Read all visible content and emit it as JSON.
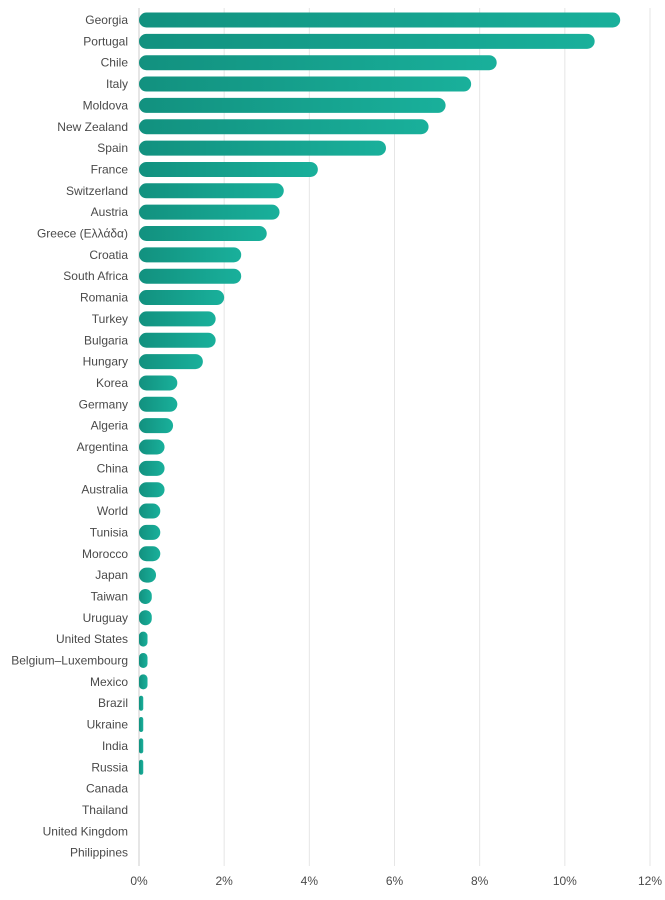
{
  "chart_data": {
    "type": "bar",
    "orientation": "horizontal",
    "categories": [
      "Georgia",
      "Portugal",
      "Chile",
      "Italy",
      "Moldova",
      "New Zealand",
      "Spain",
      "France",
      "Switzerland",
      "Austria",
      "Greece (Ελλάδα)",
      "Croatia",
      "South Africa",
      "Romania",
      "Turkey",
      "Bulgaria",
      "Hungary",
      "Korea",
      "Germany",
      "Algeria",
      "Argentina",
      "China",
      "Australia",
      "World",
      "Tunisia",
      "Morocco",
      "Japan",
      "Taiwan",
      "Uruguay",
      "United States",
      "Belgium–Luxembourg",
      "Mexico",
      "Brazil",
      "Ukraine",
      "India",
      "Russia",
      "Canada",
      "Thailand",
      "United Kingdom",
      "Philippines"
    ],
    "values": [
      11.3,
      10.7,
      8.4,
      7.8,
      7.2,
      6.8,
      5.8,
      4.2,
      3.4,
      3.3,
      3.0,
      2.4,
      2.4,
      2.0,
      1.8,
      1.8,
      1.5,
      0.9,
      0.9,
      0.8,
      0.6,
      0.6,
      0.6,
      0.5,
      0.5,
      0.5,
      0.4,
      0.3,
      0.3,
      0.2,
      0.2,
      0.2,
      0.1,
      0.1,
      0.1,
      0.1,
      0,
      0,
      0,
      0
    ],
    "xlim": [
      0,
      12
    ],
    "xticks": [
      0,
      2,
      4,
      6,
      8,
      10,
      12
    ],
    "tick_suffix": "%",
    "grid": true,
    "bar_color_start": "#12917f",
    "bar_color_end": "#19b09b",
    "title": "",
    "xlabel": "",
    "ylabel": ""
  }
}
